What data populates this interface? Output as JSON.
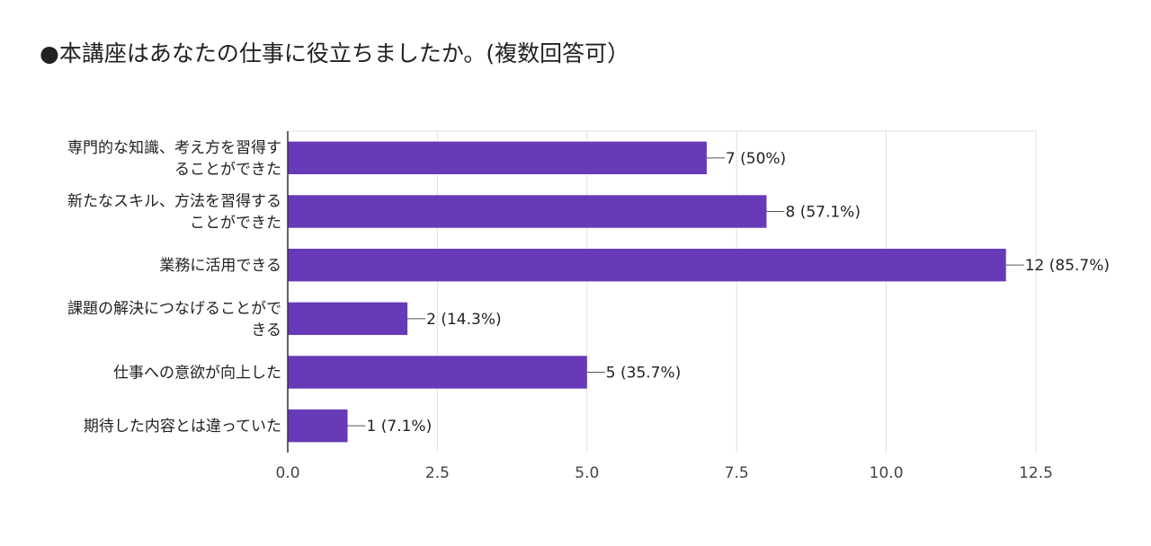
{
  "chart_data": {
    "type": "bar",
    "orientation": "horizontal",
    "title": "●本講座はあなたの仕事に役立ちましたか。(複数回答可）",
    "categories": [
      [
        "専門的な知識、考え方を習得す",
        "ることができた"
      ],
      [
        "新たなスキル、方法を習得する",
        "ことができた"
      ],
      [
        "業務に活用できる"
      ],
      [
        "課題の解決につなげることがで",
        "きる"
      ],
      [
        "仕事への意欲が向上した"
      ],
      [
        "期待した内容とは違っていた"
      ]
    ],
    "values": [
      7,
      8,
      12,
      2,
      5,
      1
    ],
    "value_labels": [
      "7 (50%)",
      "8 (57.1%)",
      "12 (85.7%)",
      "2 (14.3%)",
      "5 (35.7%)",
      "1 (7.1%)"
    ],
    "xlim": [
      0,
      12.5
    ],
    "xticks": [
      "0.0",
      "2.5",
      "5.0",
      "7.5",
      "10.0",
      "12.5"
    ],
    "xlabel": "",
    "ylabel": "",
    "grid": true,
    "bar_color": "#673ab7"
  }
}
